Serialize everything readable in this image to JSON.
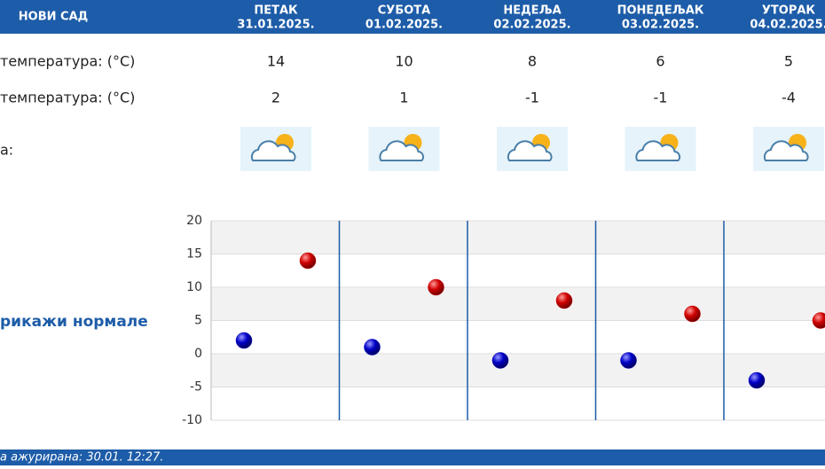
{
  "header": {
    "city": "НОВИ САД"
  },
  "labels": {
    "max": "температура: (°C)",
    "min": "температура: (°C)",
    "icon": "а:",
    "normals": "рикажи нормале"
  },
  "days": [
    {
      "name": "ПЕТАК",
      "date": "31.01.2025.",
      "max": 14,
      "min": 2
    },
    {
      "name": "СУБОТА",
      "date": "01.02.2025.",
      "max": 10,
      "min": 1
    },
    {
      "name": "НЕДЕЉА",
      "date": "02.02.2025.",
      "max": 8,
      "min": -1
    },
    {
      "name": "ПОНЕДЕЉАК",
      "date": "03.02.2025.",
      "max": 6,
      "min": -1
    },
    {
      "name": "УТОРАК",
      "date": "04.02.2025.",
      "max": 5,
      "min": -4
    }
  ],
  "chart": {
    "ylim": [
      -10,
      20
    ],
    "yticks": [
      -10,
      -5,
      0,
      5,
      10,
      15,
      20
    ],
    "max_color": "#cc0000",
    "min_color": "#0000bb"
  },
  "footer": {
    "updated": "а ажурирана:  30.01. 12:27."
  }
}
